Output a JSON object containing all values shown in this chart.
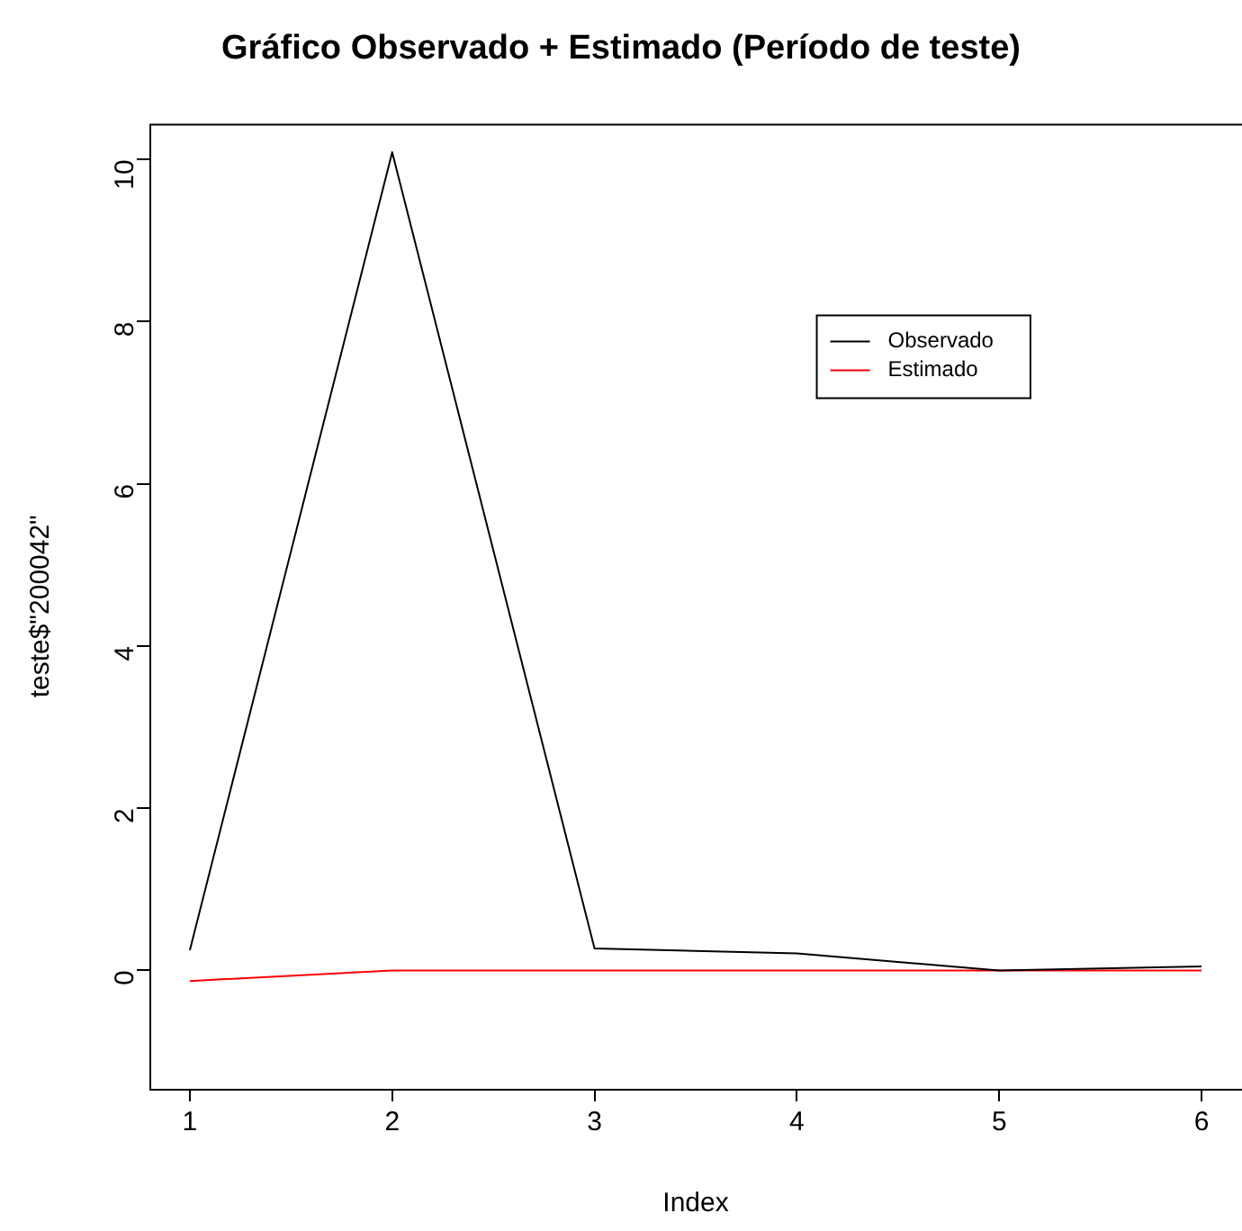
{
  "chart_data": {
    "type": "line",
    "title": "Gráfico Observado + Estimado (Período de teste)",
    "xlabel": "Index",
    "ylabel": "teste$\"200042\"",
    "x": [
      1,
      2,
      3,
      4,
      5,
      6
    ],
    "series": [
      {
        "name": "Observado",
        "color": "#000000",
        "values": [
          0.25,
          10.09,
          0.27,
          0.21,
          0,
          0.05
        ]
      },
      {
        "name": "Estimado",
        "color": "#ff0000",
        "values": [
          -0.13,
          0,
          0,
          0,
          0,
          0
        ]
      }
    ],
    "xlim": [
      0.8,
      6.2
    ],
    "xticks": [
      1,
      2,
      3,
      4,
      5,
      6
    ],
    "ylim": [
      -1.46,
      10.44
    ],
    "yticks": [
      0,
      2,
      4,
      6,
      8,
      10
    ],
    "grid": false,
    "legend": "top right",
    "marker": "none",
    "line_style": "solid"
  }
}
